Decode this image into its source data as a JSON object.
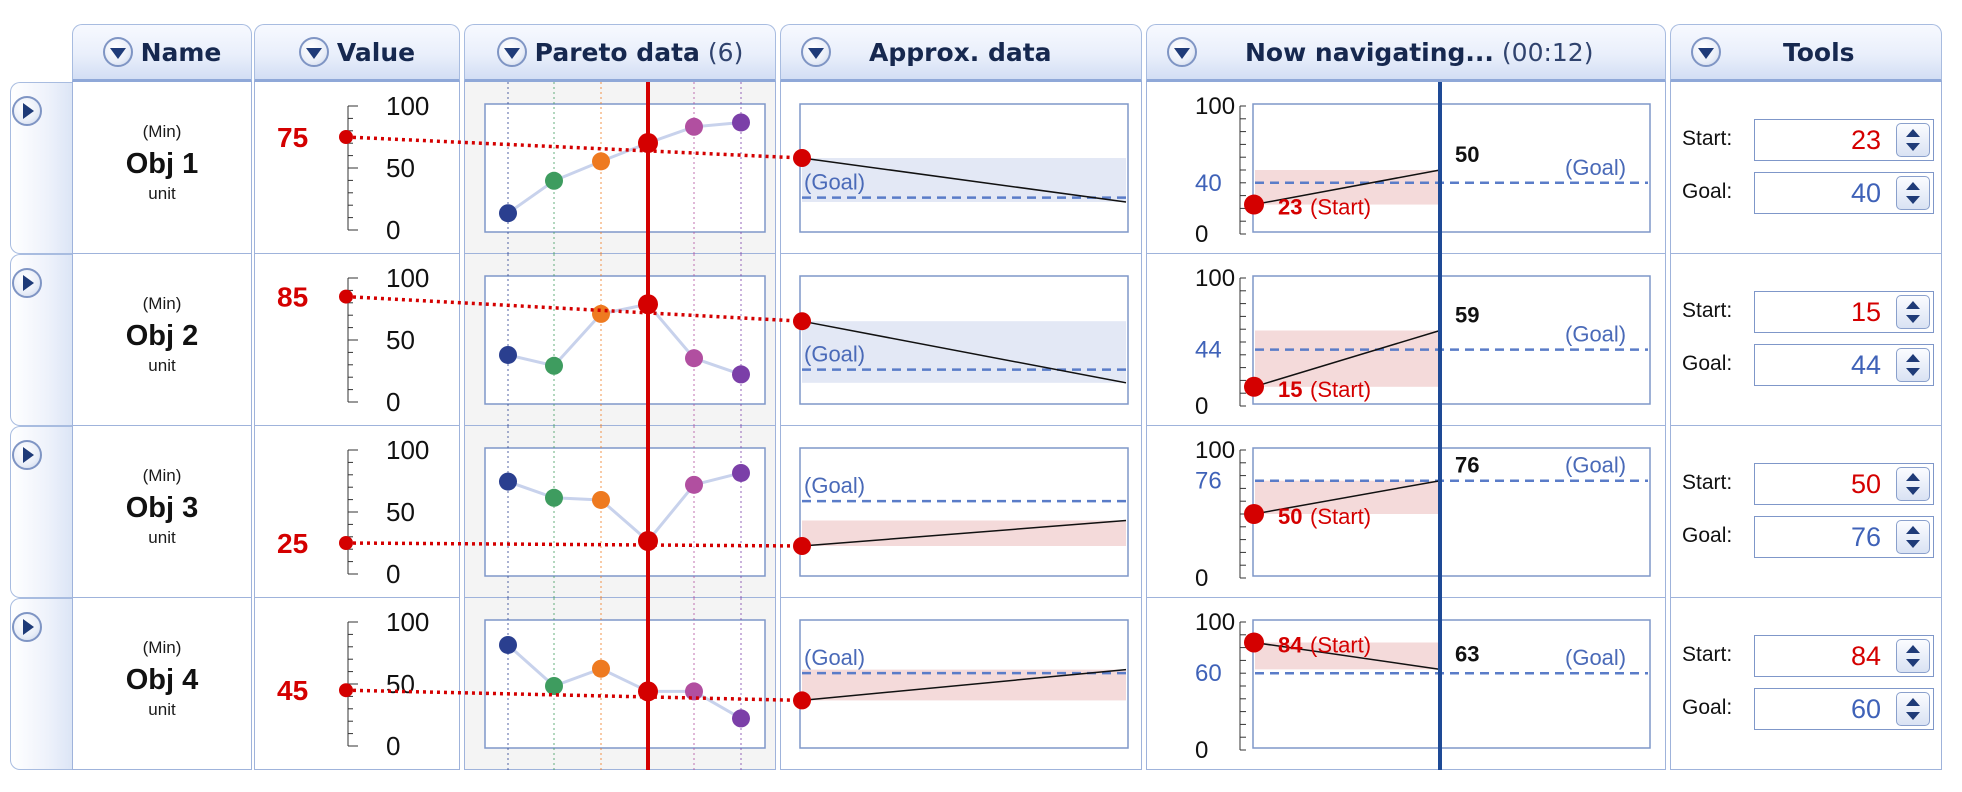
{
  "header": {
    "name": "Name",
    "value": "Value",
    "pareto": "Pareto data",
    "pareto_count": "(6)",
    "approx": "Approx. data",
    "navigating": "Now navigating...",
    "nav_time": "(00:12)",
    "tools": "Tools"
  },
  "labels": {
    "min": "(Min)",
    "unit": "unit",
    "goal": "(Goal)",
    "start_suffix": "(Start)",
    "start_field": "Start:",
    "goal_field": "Goal:"
  },
  "colors": {
    "accent_red": "#d40000",
    "nav_line": "#1e4a96",
    "goal_dash": "#5a7cc8",
    "header_text": "#16284f"
  },
  "pareto_point_colors": [
    "#2a3f8f",
    "#3e9c5f",
    "#ee7a20",
    "#cc1111",
    "#b14fa0",
    "#7b3fa8"
  ],
  "objectives": [
    {
      "name": "Obj 1",
      "value": "75",
      "value_axis": [
        "100",
        "50",
        "0"
      ],
      "pareto_values": [
        10,
        40,
        58,
        75,
        90,
        94
      ],
      "approx_start": 75,
      "approx_end": 25,
      "approx_goal": 30,
      "approx_band": [
        25,
        75
      ],
      "nav_axis": [
        "100",
        "40",
        "0"
      ],
      "nav_start": 23,
      "nav_current": 50,
      "nav_goal": 40,
      "nav_start_label": "23",
      "nav_current_label": "50",
      "nav_band": [
        23,
        50
      ],
      "tools_start": "23",
      "tools_goal": "40"
    },
    {
      "name": "Obj 2",
      "value": "85",
      "value_axis": [
        "100",
        "50",
        "0"
      ],
      "pareto_values": [
        38,
        28,
        76,
        85,
        35,
        20
      ],
      "approx_start": 85,
      "approx_end": 15,
      "approx_goal": 30,
      "approx_band": [
        15,
        85
      ],
      "nav_axis": [
        "100",
        "44",
        "0"
      ],
      "nav_start": 15,
      "nav_current": 59,
      "nav_goal": 44,
      "nav_start_label": "15",
      "nav_current_label": "59",
      "nav_band": [
        15,
        59
      ],
      "tools_start": "15",
      "tools_goal": "44"
    },
    {
      "name": "Obj 3",
      "value": "25",
      "value_axis": [
        "100",
        "50",
        "0"
      ],
      "pareto_values": [
        80,
        65,
        63,
        25,
        77,
        88
      ],
      "approx_start": 25,
      "approx_end": 54,
      "approx_goal": 76,
      "approx_band": [
        25,
        54
      ],
      "nav_axis": [
        "100",
        "76",
        "0"
      ],
      "nav_start": 50,
      "nav_current": 76,
      "nav_goal": 76,
      "nav_start_label": "50",
      "nav_current_label": "76",
      "nav_band": [
        50,
        76
      ],
      "tools_start": "50",
      "tools_goal": "76"
    },
    {
      "name": "Obj 4",
      "value": "45",
      "value_axis": [
        "100",
        "50",
        "0"
      ],
      "pareto_values": [
        88,
        50,
        66,
        45,
        45,
        20
      ],
      "approx_start": 45,
      "approx_end": 80,
      "approx_goal": 76,
      "approx_band": [
        45,
        80
      ],
      "nav_axis": [
        "100",
        "60",
        "0"
      ],
      "nav_start": 84,
      "nav_current": 63,
      "nav_goal": 60,
      "nav_start_label": "84",
      "nav_current_label": "63",
      "nav_band": [
        63,
        84
      ],
      "tools_start": "84",
      "tools_goal": "60"
    }
  ]
}
